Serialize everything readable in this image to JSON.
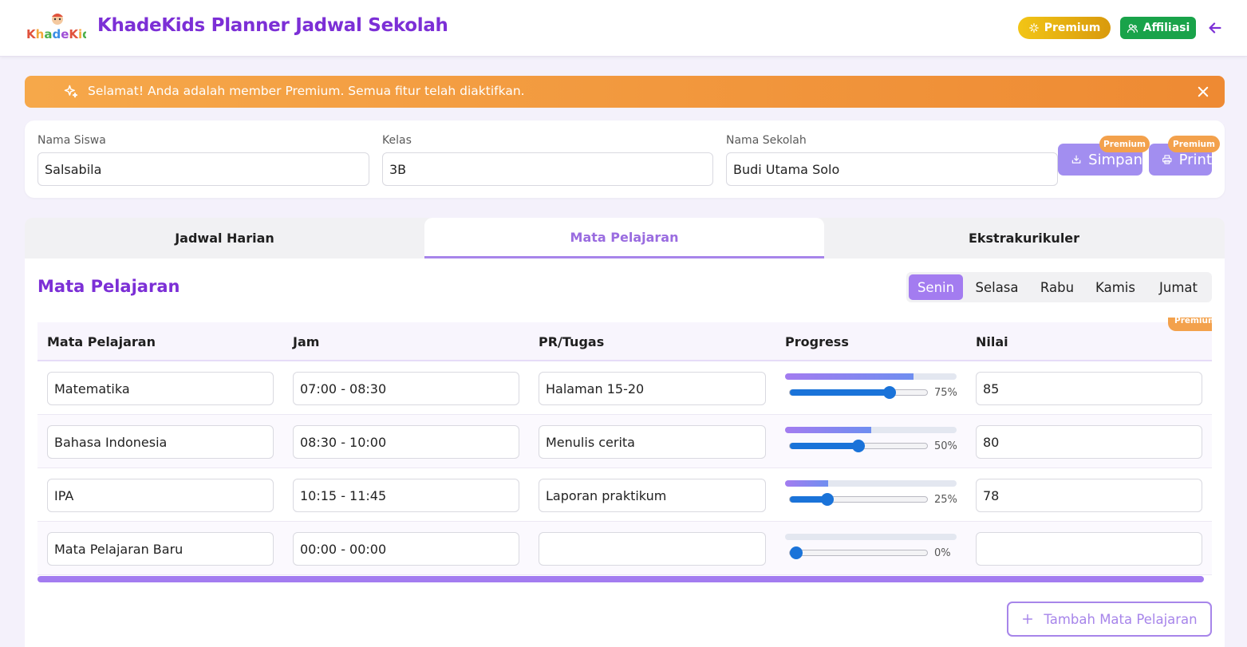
{
  "header": {
    "logo_text": "KhadeKids",
    "title": "KhadeKids Planner Jadwal Sekolah",
    "premium_label": "Premium",
    "affiliasi_label": "Affiliasi",
    "accent_color": "#7c2fd6"
  },
  "banner": {
    "message": "Selamat! Anda adalah member Premium. Semua fitur telah diaktifkan."
  },
  "student": {
    "name_label": "Nama Siswa",
    "name_value": "Salsabila",
    "class_label": "Kelas",
    "class_value": "3B",
    "school_label": "Nama Sekolah",
    "school_value": "Budi Utama Solo",
    "save_label": "Simpan",
    "print_label": "Print",
    "badge_label": "Premium"
  },
  "tabs": [
    {
      "label": "Jadwal Harian",
      "active": false
    },
    {
      "label": "Mata Pelajaran",
      "active": true
    },
    {
      "label": "Ekstrakurikuler",
      "active": false
    }
  ],
  "subjects": {
    "title": "Mata Pelajaran",
    "days": [
      "Senin",
      "Selasa",
      "Rabu",
      "Kamis",
      "Jumat"
    ],
    "active_day": "Senin",
    "head_badge": "Premium",
    "columns": [
      "Mata Pelajaran",
      "Jam",
      "PR/Tugas",
      "Progress",
      "Nilai"
    ],
    "rows": [
      {
        "subject": "Matematika",
        "time": "07:00 - 08:30",
        "task": "Halaman 15-20",
        "progress": 75,
        "progress_label": "75%",
        "score": "85"
      },
      {
        "subject": "Bahasa Indonesia",
        "time": "08:30 - 10:00",
        "task": "Menulis cerita",
        "progress": 50,
        "progress_label": "50%",
        "score": "80"
      },
      {
        "subject": "IPA",
        "time": "10:15 - 11:45",
        "task": "Laporan praktikum",
        "progress": 25,
        "progress_label": "25%",
        "score": "78"
      },
      {
        "subject": "Mata Pelajaran Baru",
        "time": "00:00 - 00:00",
        "task": "",
        "progress": 0,
        "progress_label": "0%",
        "score": ""
      }
    ],
    "add_label": "Tambah Mata Pelajaran"
  }
}
